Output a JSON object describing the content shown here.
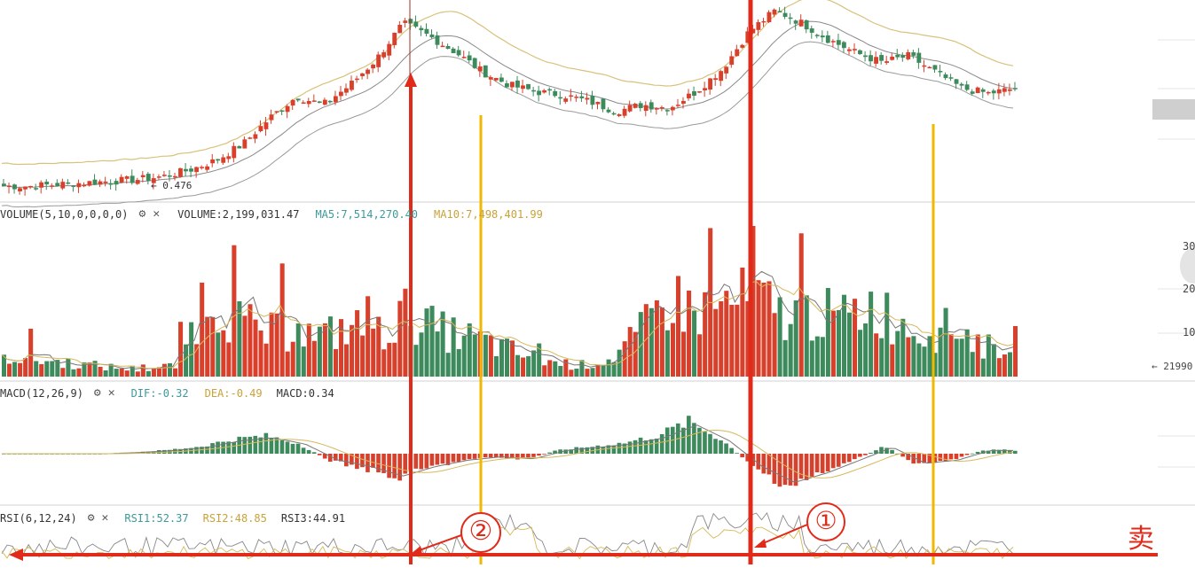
{
  "colors": {
    "up": "#d8402c",
    "down": "#3d8a5c",
    "ma5": "#6f6f6f",
    "ma10": "#d6b85a",
    "red_line": "#e02a1a",
    "yellow_line": "#f0b800",
    "sep": "#dcdcdc"
  },
  "main": {
    "low_label": "← 0.476"
  },
  "volume": {
    "title": "VOLUME(5,10,0,0,0,0)",
    "vol_label": "VOLUME:2,199,031.47",
    "ma5_label": "MA5:7,514,270.40",
    "ma10_label": "MA10:7,498,401.99",
    "gear": "⚙",
    "close": "✕",
    "right_ticks": [
      "30",
      "20",
      "10"
    ],
    "last_value": "← 21990"
  },
  "macd": {
    "title": "MACD(12,26,9)",
    "dif_label": "DIF:-0.32",
    "dea_label": "DEA:-0.49",
    "macd_label": "MACD:0.34",
    "gear": "⚙",
    "close": "✕"
  },
  "rsi": {
    "title": "RSI(6,12,24)",
    "rsi1_label": "RSI1:52.37",
    "rsi2_label": "RSI2:48.85",
    "rsi3_label": "RSI3:44.91",
    "gear": "⚙",
    "close": "✕"
  },
  "annotations": {
    "circle1": "①",
    "circle2": "②",
    "sell": "卖"
  },
  "chart_data": {
    "type": "candlestick",
    "panes": [
      "price",
      "volume",
      "macd",
      "rsi"
    ],
    "price_shape": [
      0,
      0,
      0.01,
      0.02,
      0.03,
      0.04,
      0.06,
      0.1,
      0.16,
      0.26,
      0.42,
      0.55,
      0.5,
      0.62,
      0.78,
      1.0,
      0.92,
      0.82,
      0.7,
      0.62,
      0.58,
      0.56,
      0.52,
      0.46,
      0.5,
      0.48,
      0.58,
      0.72,
      0.95,
      1.08,
      1.0,
      0.9,
      0.82,
      0.76,
      0.8,
      0.7,
      0.6,
      0.57,
      0.6
    ],
    "volume_shape": [
      0.15,
      0.12,
      0.1,
      0.08,
      0.06,
      0.05,
      0.08,
      0.6,
      0.4,
      0.3,
      0.32,
      0.28,
      0.35,
      0.3,
      0.45,
      0.32,
      0.28,
      0.22,
      0.15,
      0.1,
      0.08,
      0.12,
      0.3,
      0.55,
      0.45,
      0.5,
      0.55,
      0.42,
      0.45,
      0.4,
      0.5,
      0.38,
      0.3,
      0.35,
      0.2,
      0.25
    ],
    "macd_hist_shape": [
      0,
      0,
      0,
      0,
      0.02,
      0.05,
      0.1,
      0.2,
      0.25,
      0.15,
      -0.1,
      -0.2,
      -0.35,
      -0.2,
      -0.1,
      -0.05,
      -0.08,
      0.05,
      0.1,
      0.15,
      0.25,
      0.45,
      0.2,
      -0.2,
      -0.45,
      -0.3,
      -0.1,
      0.1,
      -0.15,
      -0.1,
      0.05,
      0.05
    ],
    "series": [
      {
        "name": "DIF"
      },
      {
        "name": "DEA"
      },
      {
        "name": "RSI1"
      },
      {
        "name": "RSI2"
      },
      {
        "name": "RSI3"
      }
    ]
  }
}
